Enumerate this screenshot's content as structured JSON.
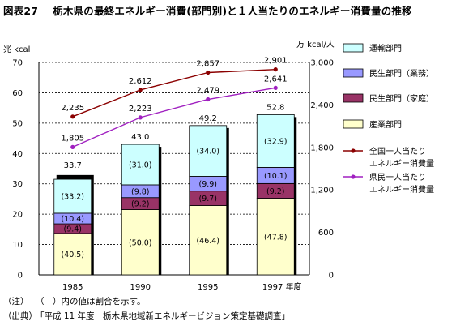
{
  "figure_number": "図表27",
  "title": "栃木県の最終エネルギー消費(部門別)と１人当たりのエネルギー消費量の推移",
  "notes": {
    "note_label": "（注）",
    "note_text": "（　）内の値は割合を示す。",
    "source_label": "（出典）",
    "source_text": "「平成 11 年度　栃木県地域新エネルギービジョン策定基礎調査」"
  },
  "colors": {
    "transport": "#ccffff",
    "residential_business": "#9999ff",
    "residential_home": "#993366",
    "industry": "#ffffcc",
    "national_line": "#8b0000",
    "prefecture_line": "#a020c0"
  },
  "chart_data": {
    "type": "bar",
    "stacked": true,
    "categories": [
      "1985",
      "1990",
      "1995",
      "1997 年度"
    ],
    "left_axis": {
      "label": "兆 kcal",
      "ylim": [
        0,
        70
      ],
      "ticks": [
        0,
        10,
        20,
        30,
        40,
        50,
        60,
        70
      ]
    },
    "right_axis": {
      "label": "万 kcal/人",
      "ylim": [
        0,
        3000
      ],
      "ticks": [
        "0",
        "600",
        "1,200",
        "1,800",
        "2,400",
        "3,000"
      ]
    },
    "grid": true,
    "legend_position": "right",
    "totals": [
      "33.7",
      "43.0",
      "49.2",
      "52.8"
    ],
    "series": [
      {
        "name": "産業部門",
        "key": "industry",
        "shares": [
          40.5,
          50.0,
          46.4,
          47.8
        ],
        "share_labels": [
          "(40.5)",
          "(50.0)",
          "(46.4)",
          "(47.8)"
        ]
      },
      {
        "name": "民生部門（家庭）",
        "key": "residential_home",
        "shares": [
          9.4,
          9.2,
          9.7,
          9.2
        ],
        "share_labels": [
          "(9.4)",
          "(9.2)",
          "(9.7)",
          "(9.2)"
        ]
      },
      {
        "name": "民生部門（業務）",
        "key": "residential_business",
        "shares": [
          10.4,
          9.8,
          9.9,
          10.1
        ],
        "share_labels": [
          "(10.4)",
          "(9.8)",
          "(9.9)",
          "(10.1)"
        ]
      },
      {
        "name": "運輸部門",
        "key": "transport",
        "shares": [
          33.2,
          31.0,
          34.0,
          32.9
        ],
        "share_labels": [
          "(33.2)",
          "(31.0)",
          "(34.0)",
          "(32.9)"
        ]
      }
    ],
    "legend_order": [
      "transport",
      "residential_business",
      "residential_home",
      "industry"
    ],
    "lines": [
      {
        "name": "全国一人当たりエネルギー消費量",
        "key": "national_line",
        "values": [
          2235,
          2612,
          2857,
          2901
        ],
        "labels": [
          "2,235",
          "2,612",
          "2,857",
          "2,901"
        ]
      },
      {
        "name": "県民一人当たりエネルギー消費量",
        "key": "prefecture_line",
        "values": [
          1805,
          2223,
          2479,
          2641
        ],
        "labels": [
          "1,805",
          "2,223",
          "2,479",
          "2,641"
        ]
      }
    ]
  }
}
